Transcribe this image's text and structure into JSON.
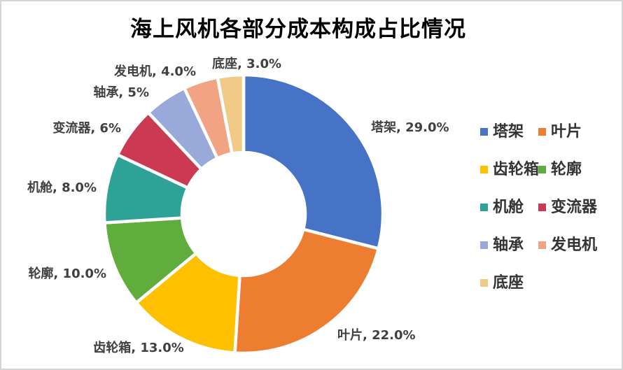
{
  "frame": {
    "background": "#FFFFFF",
    "border_color": "#D4D4D4"
  },
  "chart_data": {
    "type": "pie",
    "subtype": "donut",
    "title": "海上风机各部分成本构成占比情况",
    "categories": [
      "塔架",
      "叶片",
      "齿轮箱",
      "轮廓",
      "机舱",
      "变流器",
      "轴承",
      "发电机",
      "底座"
    ],
    "values": [
      29.0,
      22.0,
      13.0,
      10.0,
      8.0,
      6.0,
      5.0,
      4.0,
      3.0
    ],
    "unit": "%",
    "data_labels": [
      "塔架, 29.0%",
      "叶片, 22.0%",
      "齿轮箱, 13.0%",
      "轮廓, 10.0%",
      "机舱, 8.0%",
      "变流器, 6%",
      "轴承, 5%",
      "发电机, 4.0%",
      "底座, 3.0%"
    ],
    "colors": [
      "#4673C6",
      "#ED7D31",
      "#FFC000",
      "#60AC3C",
      "#2EA296",
      "#CB3A52",
      "#98A9DA",
      "#F1A384",
      "#F0CB87"
    ],
    "start_angle_deg": 0,
    "direction": "clockwise",
    "hole_ratio": 0.44,
    "slice_gap_color": "#FFFFFF",
    "label_color": "#404040",
    "title_color": "#000000",
    "legend": {
      "position": "right",
      "columns": 2,
      "entries": [
        "塔架",
        "叶片",
        "齿轮箱",
        "轮廓",
        "机舱",
        "变流器",
        "轴承",
        "发电机",
        "底座"
      ]
    }
  }
}
